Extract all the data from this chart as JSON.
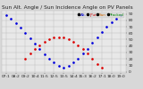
{
  "title": "Sun Alt. Angle / Sun Incidence Angle on PV Panels",
  "bg_color": "#d8d8d8",
  "plot_bg_color": "#e8e8e8",
  "grid_color": "#bbbbbb",
  "text_color": "#222222",
  "blue_color": "#0000dd",
  "red_color": "#dd0000",
  "legend_entries": [
    {
      "label": "Alt.",
      "color": "#0000cc"
    },
    {
      "label": "JPut",
      "color": "#cc0000"
    },
    {
      "label": "Sun",
      "color": "#cc6600"
    },
    {
      "label": "Tracked",
      "color": "#008800"
    }
  ],
  "x_labels": [
    "07:1",
    "08:2",
    "09:2",
    "10:4",
    "11:5",
    "12:5",
    "13:5",
    "14:4",
    "15:3",
    "16:2",
    "17:1",
    "18:0",
    "19:0"
  ],
  "y_ticks": [
    0,
    10,
    20,
    30,
    40,
    50,
    60,
    70,
    80,
    90
  ],
  "y_labels": [
    "0",
    "10",
    "20",
    "30",
    "40",
    "50",
    "60",
    "70",
    "80",
    "90"
  ],
  "ylim": [
    -2,
    95
  ],
  "xlim": [
    -0.5,
    12.5
  ],
  "blue_x": [
    0,
    0.5,
    1,
    1.5,
    2,
    2.5,
    3,
    3.5,
    4,
    4.5,
    5,
    5.5,
    6,
    6.5,
    7,
    7.5,
    8,
    8.5,
    9,
    9.5,
    10,
    10.5,
    11,
    11.5,
    12
  ],
  "blue_y": [
    88,
    82,
    75,
    68,
    60,
    52,
    44,
    36,
    27,
    20,
    14,
    9,
    6,
    9,
    14,
    20,
    28,
    36,
    45,
    54,
    62,
    70,
    77,
    83,
    88
  ],
  "red_x": [
    2,
    2.5,
    3,
    3.5,
    4,
    4.5,
    5,
    5.5,
    6,
    6.5,
    7,
    7.5,
    8,
    8.5,
    9,
    9.5,
    10
  ],
  "red_y": [
    20,
    28,
    35,
    41,
    46,
    50,
    53,
    54,
    53,
    50,
    46,
    41,
    35,
    28,
    20,
    12,
    6
  ],
  "marker_size": 1.8,
  "title_fontsize": 4.2,
  "tick_fontsize": 3.2,
  "legend_fontsize": 3.0
}
